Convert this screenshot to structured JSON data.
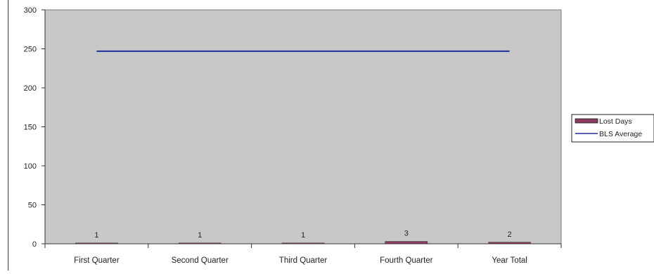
{
  "chart_data": {
    "type": "bar",
    "categories": [
      "First Quarter",
      "Second Quarter",
      "Third Quarter",
      "Fourth Quarter",
      "Year Total"
    ],
    "series": [
      {
        "name": "Lost Days",
        "kind": "bar",
        "values": [
          1,
          1,
          1,
          3,
          2
        ],
        "data_labels": [
          "1",
          "1",
          "1",
          "3",
          "2"
        ],
        "color": "#8a3a5c"
      },
      {
        "name": "BLS Average",
        "kind": "line",
        "values": [
          247,
          247,
          247,
          247,
          247
        ],
        "color": "#1f2e9a"
      }
    ],
    "y_ticks": [
      "0",
      "50",
      "100",
      "150",
      "200",
      "250",
      "300"
    ],
    "ylim": [
      0,
      300
    ],
    "title": "",
    "xlabel": "",
    "ylabel": "",
    "grid": false,
    "legend_position": "right",
    "plot_background": "#c8c8c8"
  }
}
